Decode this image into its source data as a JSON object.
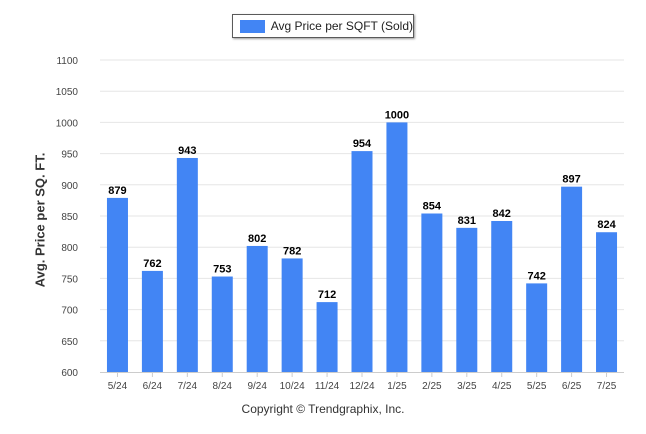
{
  "chart_data": {
    "type": "bar",
    "title": "",
    "xlabel": "",
    "ylabel": "Avg. Price per SQ. FT.",
    "ylim": [
      600,
      1100
    ],
    "yticks": [
      600,
      650,
      700,
      750,
      800,
      850,
      900,
      950,
      1000,
      1050,
      1100
    ],
    "grid": true,
    "legend": "top-center",
    "categories": [
      "5/24",
      "6/24",
      "7/24",
      "8/24",
      "9/24",
      "10/24",
      "11/24",
      "12/24",
      "1/25",
      "2/25",
      "3/25",
      "4/25",
      "5/25",
      "6/25",
      "7/25"
    ],
    "series": [
      {
        "name": "Avg Price per SQFT (Sold)",
        "color": "#4285f4",
        "values": [
          879,
          762,
          943,
          753,
          802,
          782,
          712,
          954,
          1000,
          854,
          831,
          842,
          742,
          897,
          824
        ]
      }
    ]
  },
  "footer": {
    "copyright": "Copyright © Trendgraphix, Inc."
  }
}
